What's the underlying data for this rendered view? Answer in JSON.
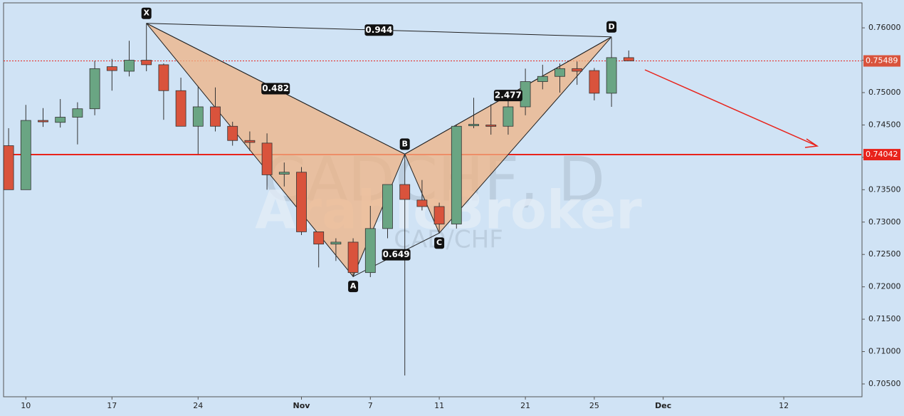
{
  "chart_data": {
    "type": "candlestick",
    "watermark": [
      "CADCHF, D",
      "ArabicBroker",
      "CAD/CHF"
    ],
    "categories": [
      null,
      "10",
      null,
      null,
      null,
      null,
      "17",
      null,
      null,
      null,
      null,
      "24",
      null,
      null,
      null,
      null,
      null,
      "Nov",
      null,
      null,
      null,
      "7",
      null,
      null,
      null,
      "11",
      null,
      null,
      null,
      null,
      "21",
      null,
      null,
      null,
      "25",
      null,
      null,
      null,
      "Dec",
      null,
      null,
      null,
      null,
      null,
      null,
      "12",
      null,
      null,
      null,
      null
    ],
    "series": [
      {
        "up_color": "#6aa583",
        "down_color": "#d9533c",
        "open": [
          0.7418,
          0.735,
          0.7457,
          0.7454,
          0.7462,
          0.7475,
          0.754,
          0.7533,
          0.755,
          0.7543,
          0.7503,
          0.7448,
          0.7478,
          0.7448,
          0.7426,
          0.7422,
          0.7374,
          0.7377,
          0.7285,
          0.7266,
          0.7269,
          0.7222,
          0.729,
          0.7358,
          0.7334,
          0.7324,
          0.7297,
          0.7449,
          0.745,
          0.7448,
          0.7478,
          0.7517,
          0.7525,
          0.7537,
          0.7534,
          0.7499,
          0.7554
        ],
        "high": [
          0.7445,
          0.7481,
          0.7476,
          0.749,
          0.7485,
          0.7549,
          0.7552,
          0.758,
          0.7607,
          0.7545,
          0.7523,
          0.751,
          0.7508,
          0.7455,
          0.744,
          0.7437,
          0.7392,
          0.7385,
          0.7285,
          0.7275,
          0.7275,
          0.7325,
          0.7355,
          0.7405,
          0.7365,
          0.733,
          0.7451,
          0.7492,
          0.7482,
          0.7495,
          0.7537,
          0.7543,
          0.7545,
          0.7548,
          0.7538,
          0.7585,
          0.7565
        ],
        "low": [
          0.735,
          0.735,
          0.7447,
          0.7446,
          0.742,
          0.7465,
          0.7503,
          0.7525,
          0.7533,
          0.7458,
          0.7448,
          0.7405,
          0.744,
          0.7418,
          0.741,
          0.735,
          0.7355,
          0.728,
          0.723,
          0.724,
          0.7215,
          0.7215,
          0.7275,
          0.7063,
          0.7318,
          0.7283,
          0.729,
          0.7445,
          0.7435,
          0.7435,
          0.7465,
          0.7505,
          0.75,
          0.7512,
          0.7488,
          0.7478,
          0.7549
        ],
        "close": [
          0.735,
          0.7457,
          0.7455,
          0.7462,
          0.7475,
          0.7537,
          0.7534,
          0.755,
          0.7543,
          0.7503,
          0.7448,
          0.7478,
          0.7448,
          0.7426,
          0.7423,
          0.7373,
          0.7377,
          0.7285,
          0.7266,
          0.7269,
          0.7222,
          0.729,
          0.7358,
          0.7335,
          0.7324,
          0.7297,
          0.7448,
          0.7451,
          0.7449,
          0.7478,
          0.7517,
          0.7525,
          0.7537,
          0.7533,
          0.7499,
          0.7554,
          0.7549
        ]
      }
    ],
    "ylim": [
      0.70302,
      0.76386
    ],
    "yticks": [
      {
        "value": 0.76,
        "label": "0.76000"
      },
      {
        "value": 0.755,
        "label": "0.75500"
      },
      {
        "value": 0.75,
        "label": "0.75000"
      },
      {
        "value": 0.745,
        "label": "0.74500"
      },
      {
        "value": 0.74,
        "label": "0.74000"
      },
      {
        "value": 0.735,
        "label": "0.73500"
      },
      {
        "value": 0.73,
        "label": "0.73000"
      },
      {
        "value": 0.725,
        "label": "0.72500"
      },
      {
        "value": 0.72,
        "label": "0.72000"
      },
      {
        "value": 0.715,
        "label": "0.71500"
      },
      {
        "value": 0.71,
        "label": "0.71000"
      },
      {
        "value": 0.705,
        "label": "0.70500"
      }
    ],
    "price_lines": [
      {
        "value": 0.75489,
        "style": "dotted"
      },
      {
        "value": 0.74042,
        "style": "solid"
      }
    ],
    "pattern": {
      "points": [
        {
          "label": "X",
          "index": 8,
          "value": 0.7607,
          "pos": "above"
        },
        {
          "label": "A",
          "index": 20,
          "value": 0.7216,
          "pos": "below"
        },
        {
          "label": "B",
          "index": 23,
          "value": 0.7405,
          "pos": "above"
        },
        {
          "label": "C",
          "index": 25,
          "value": 0.7283,
          "pos": "below"
        },
        {
          "label": "D",
          "index": 35,
          "value": 0.7586,
          "pos": "above"
        }
      ],
      "ratios": [
        {
          "label": "0.944",
          "from": 0,
          "to": 4
        },
        {
          "label": "0.482",
          "from": 0,
          "to": 2
        },
        {
          "label": "0.649",
          "from": 1,
          "to": 3
        },
        {
          "label": "2.477",
          "from": 2,
          "to": 4
        }
      ]
    }
  }
}
